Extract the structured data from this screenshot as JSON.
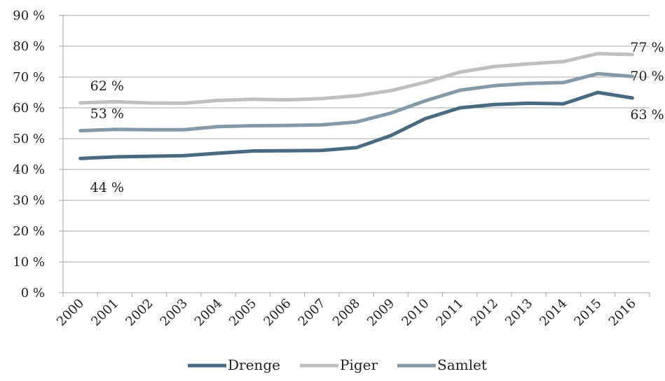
{
  "chart_data": {
    "type": "line",
    "title": "",
    "xlabel": "",
    "ylabel": "",
    "x": [
      "2000",
      "2001",
      "2002",
      "2003",
      "2004",
      "2005",
      "2006",
      "2007",
      "2008",
      "2009",
      "2010",
      "2011",
      "2012",
      "2013",
      "2014",
      "2015",
      "2016"
    ],
    "y_ticks": [
      "0 %",
      "10 %",
      "20 %",
      "30 %",
      "40 %",
      "50 %",
      "60 %",
      "70 %",
      "80 %",
      "90 %"
    ],
    "ylim": [
      0,
      90
    ],
    "grid": true,
    "legend_position": "bottom",
    "series": [
      {
        "name": "Drenge",
        "color": "#4a6a80",
        "values": [
          43.6,
          44.1,
          44.3,
          44.5,
          45.3,
          46.0,
          46.1,
          46.2,
          47.1,
          51.0,
          56.5,
          60.0,
          61.1,
          61.5,
          61.3,
          65.0,
          63.2
        ]
      },
      {
        "name": "Piger",
        "color": "#bfbfbf",
        "values": [
          61.6,
          62.0,
          61.6,
          61.5,
          62.4,
          62.8,
          62.6,
          63.0,
          63.9,
          65.6,
          68.3,
          71.6,
          73.4,
          74.3,
          75.0,
          77.6,
          77.3
        ]
      },
      {
        "name": "Samlet",
        "color": "#8699a6",
        "values": [
          52.6,
          53.0,
          52.9,
          52.9,
          53.9,
          54.2,
          54.3,
          54.5,
          55.4,
          58.3,
          62.3,
          65.7,
          67.2,
          67.9,
          68.2,
          71.1,
          70.2
        ]
      }
    ],
    "annotations": [
      {
        "text": "62 %",
        "series": "Piger",
        "x": "2000"
      },
      {
        "text": "53 %",
        "series": "Samlet",
        "x": "2000"
      },
      {
        "text": "44 %",
        "series": "Drenge",
        "x": "2000"
      },
      {
        "text": "77 %",
        "series": "Piger",
        "x": "2016"
      },
      {
        "text": "70 %",
        "series": "Samlet",
        "x": "2016"
      },
      {
        "text": "63 %",
        "series": "Drenge",
        "x": "2016"
      }
    ]
  }
}
